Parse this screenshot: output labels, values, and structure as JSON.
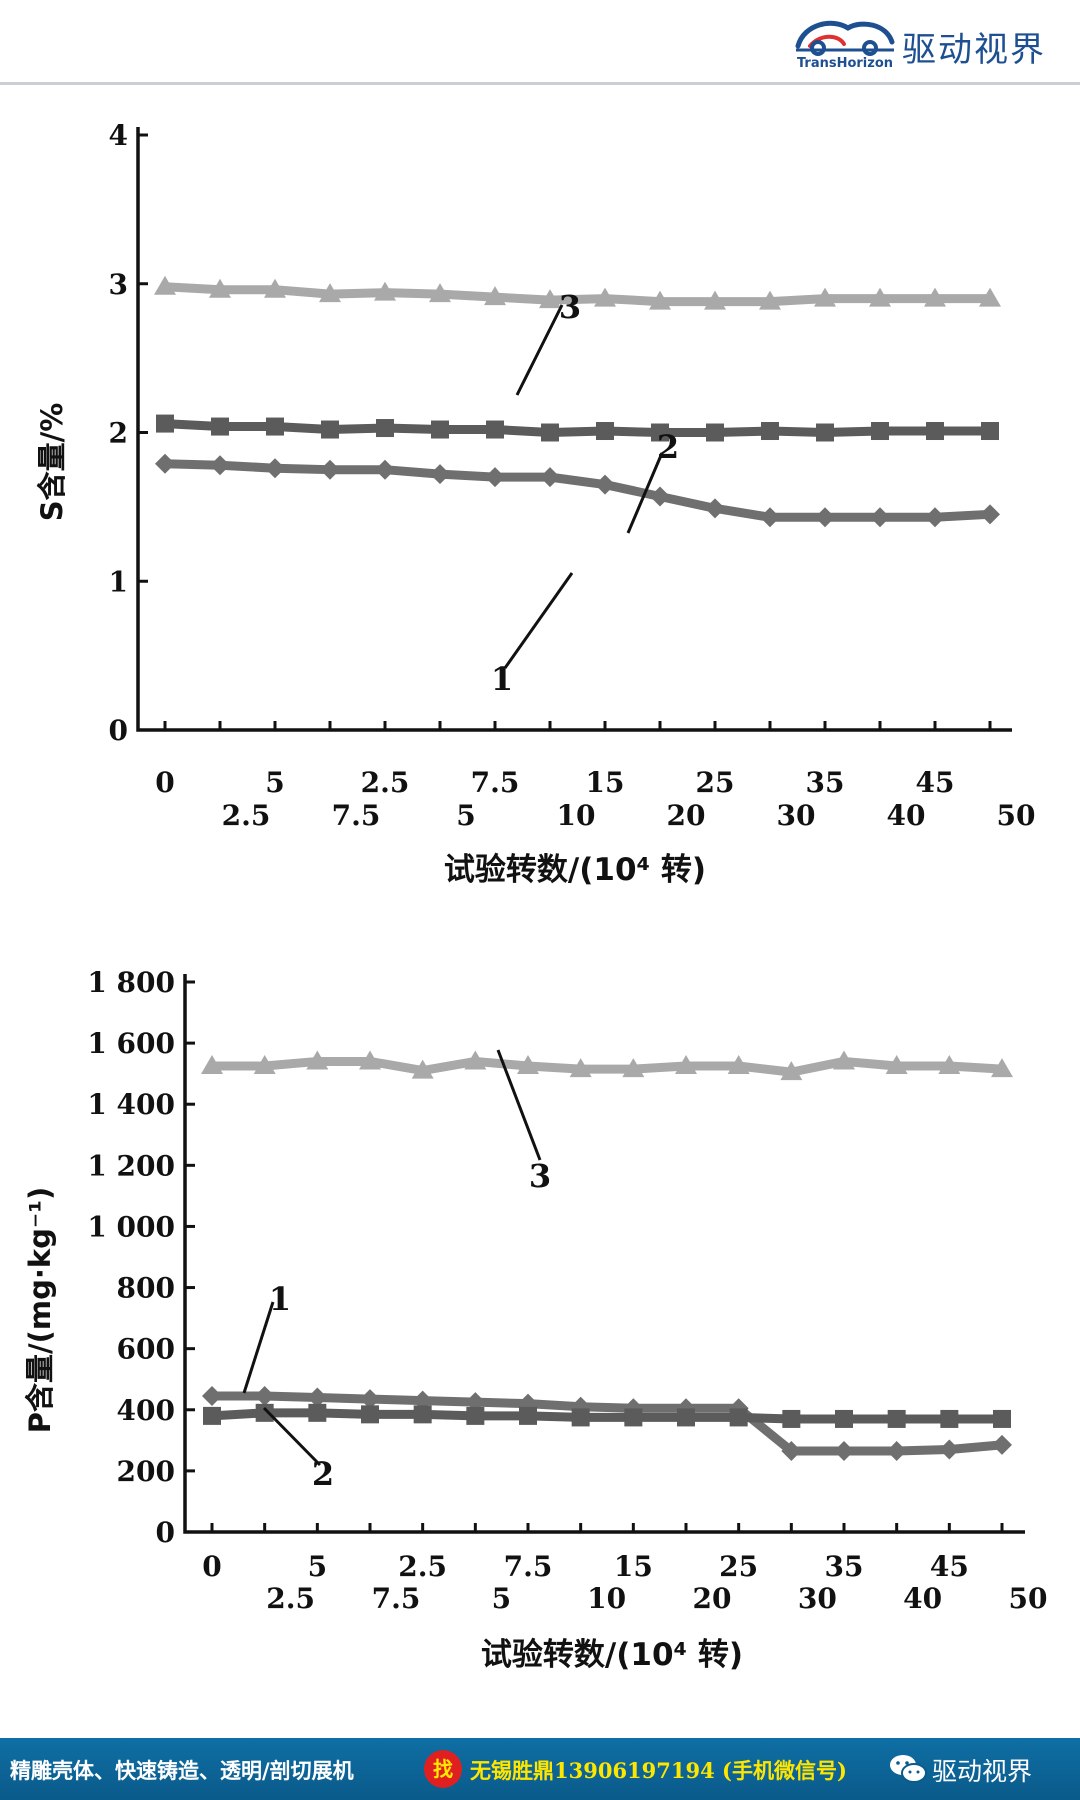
{
  "header": {
    "brand": "驱动视界",
    "logo_caption": "TransHorizon",
    "logo_icon": "car-swirl-logo-icon"
  },
  "charts": [
    {
      "type": "line",
      "ylabel": "S含量/%",
      "xlabel": "试验转数/(10⁴ 转)",
      "ylim": [
        0,
        4
      ],
      "yticks": [
        {
          "value": 0,
          "label": "0"
        },
        {
          "value": 1,
          "label": "1"
        },
        {
          "value": 2,
          "label": "2"
        },
        {
          "value": 3,
          "label": "3"
        },
        {
          "value": 4,
          "label": "4"
        }
      ],
      "x_tick_labels": [
        "0",
        "2.5",
        "5",
        "7.5",
        "2.5",
        "5",
        "7.5",
        "10",
        "15",
        "20",
        "25",
        "30",
        "35",
        "40",
        "45",
        "50"
      ],
      "grid": false,
      "series": [
        {
          "name": "1",
          "color": "#6f6f6f",
          "marker": "diamond",
          "values": [
            1.79,
            1.78,
            1.76,
            1.75,
            1.75,
            1.72,
            1.7,
            1.7,
            1.65,
            1.57,
            1.49,
            1.43,
            1.43,
            1.43,
            1.43,
            1.45
          ]
        },
        {
          "name": "2",
          "color": "#5b5b5b",
          "marker": "square",
          "values": [
            2.06,
            2.04,
            2.04,
            2.02,
            2.03,
            2.02,
            2.02,
            2.0,
            2.01,
            2.0,
            2.0,
            2.01,
            2.0,
            2.01,
            2.01,
            2.01
          ]
        },
        {
          "name": "3",
          "color": "#a9a9a9",
          "marker": "triangle",
          "values": [
            2.98,
            2.96,
            2.96,
            2.93,
            2.94,
            2.93,
            2.91,
            2.89,
            2.9,
            2.88,
            2.88,
            2.88,
            2.9,
            2.9,
            2.9,
            2.9
          ]
        }
      ]
    },
    {
      "type": "line",
      "ylabel": "P含量/(mg·kg⁻¹)",
      "xlabel": "试验转数/(10⁴ 转)",
      "ylim": [
        0,
        1800
      ],
      "yticks": [
        {
          "value": 0,
          "label": "0"
        },
        {
          "value": 200,
          "label": "200"
        },
        {
          "value": 400,
          "label": "400"
        },
        {
          "value": 600,
          "label": "600"
        },
        {
          "value": 800,
          "label": "800"
        },
        {
          "value": 1000,
          "label": "1 000"
        },
        {
          "value": 1200,
          "label": "1 200"
        },
        {
          "value": 1400,
          "label": "1 400"
        },
        {
          "value": 1600,
          "label": "1 600"
        },
        {
          "value": 1800,
          "label": "1 800"
        }
      ],
      "x_tick_labels": [
        "0",
        "2.5",
        "5",
        "7.5",
        "2.5",
        "5",
        "7.5",
        "10",
        "15",
        "20",
        "25",
        "30",
        "35",
        "40",
        "45",
        "50"
      ],
      "grid": false,
      "series": [
        {
          "name": "1",
          "color": "#6f6f6f",
          "marker": "diamond",
          "values": [
            445,
            445,
            440,
            435,
            430,
            425,
            420,
            410,
            405,
            405,
            405,
            265,
            265,
            265,
            270,
            285
          ]
        },
        {
          "name": "2",
          "color": "#5b5b5b",
          "marker": "square",
          "values": [
            380,
            390,
            390,
            385,
            385,
            380,
            380,
            375,
            375,
            375,
            375,
            370,
            370,
            370,
            370,
            370
          ]
        },
        {
          "name": "3",
          "color": "#a9a9a9",
          "marker": "triangle",
          "values": [
            1525,
            1525,
            1540,
            1540,
            1510,
            1540,
            1525,
            1515,
            1515,
            1525,
            1525,
            1505,
            1540,
            1525,
            1525,
            1515
          ]
        }
      ]
    }
  ],
  "footer": {
    "services": "精雕壳体、快速铸造、透明/剖切展机",
    "badge": "找",
    "contact": "无锡胜鼎13906197194 (手机微信号)",
    "wechat_icon": "wechat-icon",
    "brand": "驱动视界"
  }
}
